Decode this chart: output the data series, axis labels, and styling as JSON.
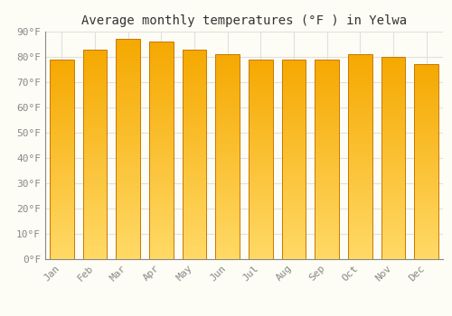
{
  "title": "Average monthly temperatures (°F ) in Yelwa",
  "months": [
    "Jan",
    "Feb",
    "Mar",
    "Apr",
    "May",
    "Jun",
    "Jul",
    "Aug",
    "Sep",
    "Oct",
    "Nov",
    "Dec"
  ],
  "values": [
    79,
    83,
    87,
    86,
    83,
    81,
    79,
    79,
    79,
    81,
    80,
    77
  ],
  "bar_color_top": "#F5A800",
  "bar_color_bottom": "#FFD966",
  "bar_edge_color": "#C87800",
  "background_color": "#FDFDF5",
  "grid_color": "#E0E0E0",
  "ylim": [
    0,
    90
  ],
  "yticks": [
    0,
    10,
    20,
    30,
    40,
    50,
    60,
    70,
    80,
    90
  ],
  "ytick_labels": [
    "0°F",
    "10°F",
    "20°F",
    "30°F",
    "40°F",
    "50°F",
    "60°F",
    "70°F",
    "80°F",
    "90°F"
  ],
  "title_fontsize": 10,
  "tick_fontsize": 8,
  "font_family": "monospace",
  "bar_width": 0.72
}
